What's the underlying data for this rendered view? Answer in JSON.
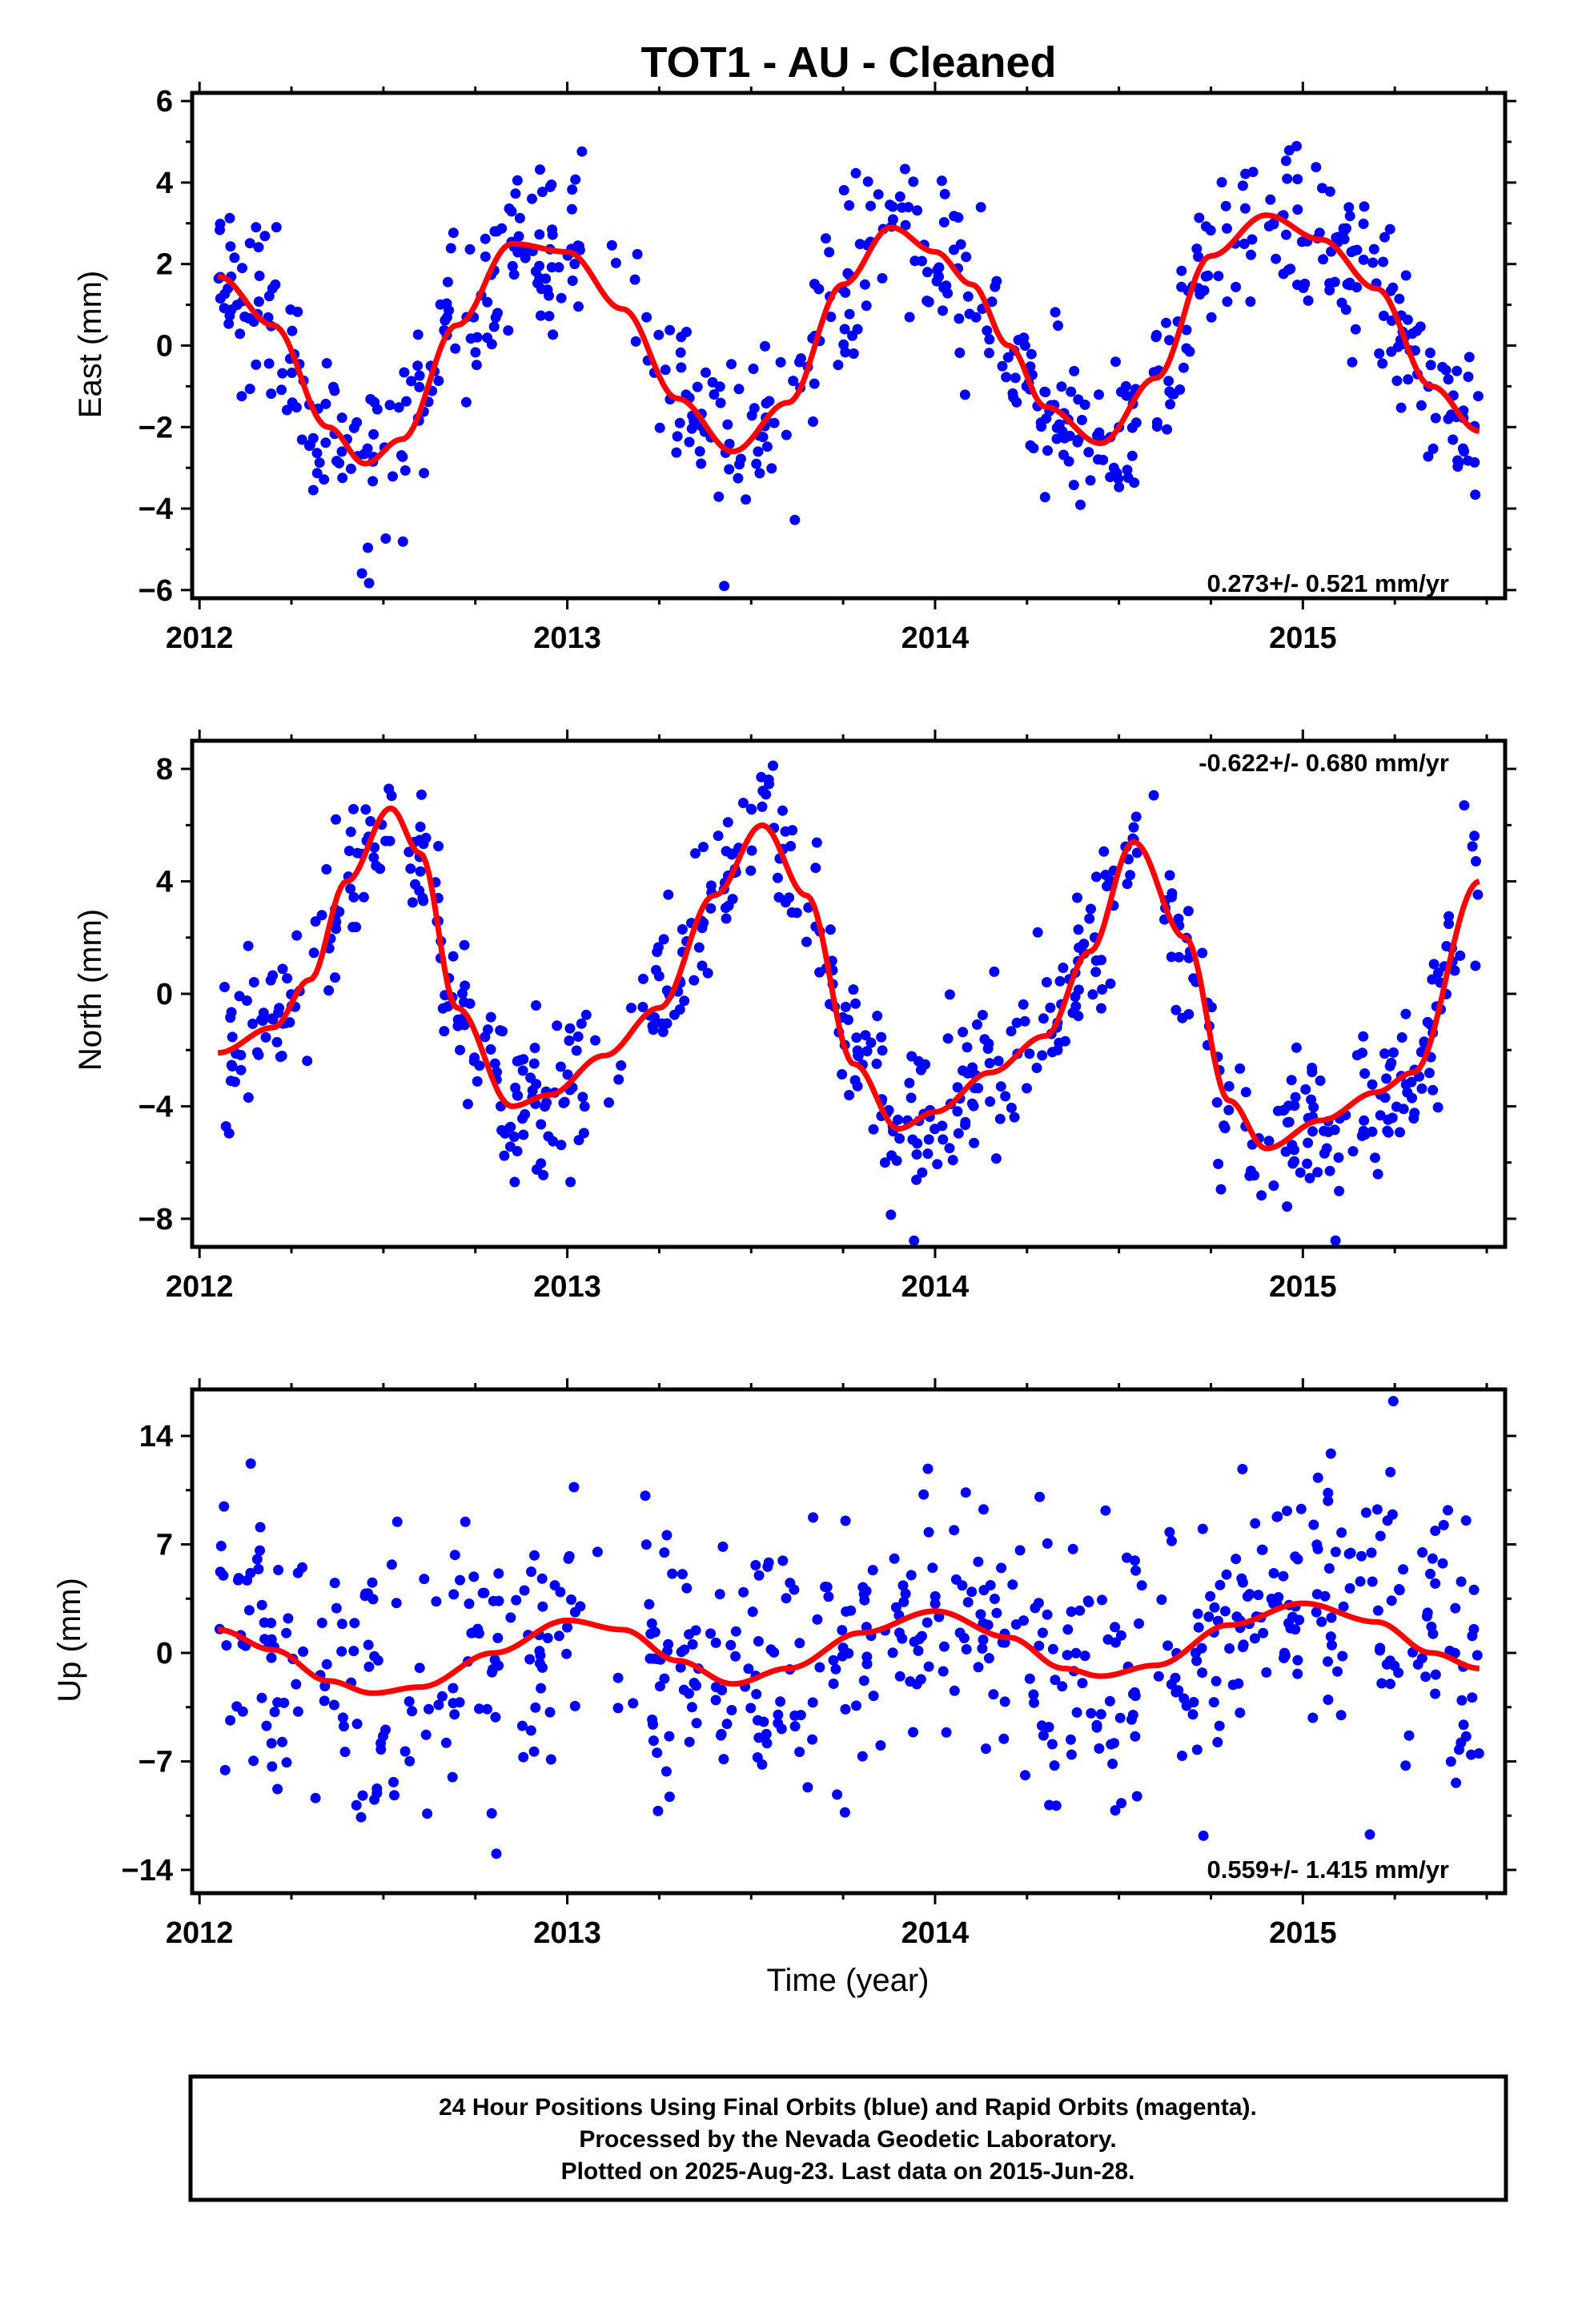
{
  "title": "TOT1  - AU - Cleaned",
  "xlabel": "Time (year)",
  "colors": {
    "points": "#0000ff",
    "fit": "#ff0000",
    "frame": "#000000"
  },
  "footer": {
    "line1": "24 Hour Positions Using Final Orbits (blue) and Rapid Orbits (magenta).",
    "line2": "Processed by the Nevada Geodetic Laboratory.",
    "line3": "Plotted on 2025-Aug-23. Last data on 2015-Jun-28."
  },
  "chart_data": [
    {
      "type": "scatter",
      "ylabel": "East (mm)",
      "rate_label": "0.273+/- 0.521 mm/yr",
      "xlim": [
        2011.98,
        2015.55
      ],
      "ylim": [
        -6.2,
        6.2
      ],
      "xticks": [
        "2012",
        "2013",
        "2014",
        "2015"
      ],
      "yticks": [
        -6,
        -4,
        -2,
        0,
        2,
        4,
        6
      ],
      "fit": {
        "x": [
          2012.05,
          2012.2,
          2012.35,
          2012.45,
          2012.55,
          2012.7,
          2012.85,
          2013.0,
          2013.15,
          2013.3,
          2013.45,
          2013.6,
          2013.75,
          2013.88,
          2014.0,
          2014.1,
          2014.2,
          2014.3,
          2014.45,
          2014.6,
          2014.75,
          2014.9,
          2015.05,
          2015.2,
          2015.35,
          2015.48
        ],
        "y": [
          1.7,
          0.5,
          -2.0,
          -2.9,
          -2.3,
          0.5,
          2.5,
          2.3,
          0.9,
          -1.3,
          -2.6,
          -1.4,
          1.5,
          2.9,
          2.3,
          1.5,
          0.0,
          -1.5,
          -2.4,
          -0.8,
          2.2,
          3.2,
          2.6,
          1.4,
          -1.0,
          -2.1
        ]
      },
      "seasonal": {
        "period": 1.0,
        "fitTop": 2013.88,
        "fitBottom": 2012.45,
        "amplitude": 2.7,
        "meanOffset": 0.25,
        "noiseScale": 1.0,
        "count": 650,
        "gaps": [
          [
            2013.05,
            2013.2
          ],
          [
            2014.55,
            2014.62
          ]
        ]
      }
    },
    {
      "type": "scatter",
      "ylabel": "North (mm)",
      "rate_label": "-0.622+/- 0.680 mm/yr",
      "xlim": [
        2011.98,
        2015.55
      ],
      "ylim": [
        -9.0,
        9.0
      ],
      "xticks": [
        "2012",
        "2013",
        "2014",
        "2015"
      ],
      "yticks": [
        -8,
        -4,
        0,
        4,
        8
      ],
      "fit": {
        "x": [
          2012.05,
          2012.2,
          2012.3,
          2012.4,
          2012.52,
          2012.6,
          2012.7,
          2012.85,
          2012.95,
          2013.1,
          2013.25,
          2013.4,
          2013.53,
          2013.65,
          2013.78,
          2013.9,
          2014.0,
          2014.15,
          2014.3,
          2014.42,
          2014.54,
          2014.68,
          2014.8,
          2014.9,
          2015.05,
          2015.2,
          2015.3,
          2015.48
        ],
        "y": [
          -2.1,
          -1.2,
          0.5,
          4.0,
          6.6,
          5.0,
          -0.5,
          -4.0,
          -3.6,
          -2.2,
          -0.5,
          3.5,
          6.0,
          3.5,
          -2.5,
          -4.8,
          -4.2,
          -2.8,
          -1.5,
          1.5,
          5.4,
          2.0,
          -3.8,
          -5.5,
          -4.5,
          -3.5,
          -2.8,
          4.0
        ]
      },
      "seasonal": {
        "period": 1.0,
        "fitTop": 2012.52,
        "fitBottom": 2013.9,
        "amplitude": 5.0,
        "meanOffset": 0.0,
        "noiseScale": 1.4,
        "count": 650,
        "gaps": [
          [
            2013.05,
            2013.2
          ],
          [
            2014.55,
            2014.62
          ]
        ]
      }
    },
    {
      "type": "scatter",
      "ylabel": "Up (mm)",
      "rate_label": "0.559+/- 1.415 mm/yr",
      "xlim": [
        2011.98,
        2015.55
      ],
      "ylim": [
        -15.5,
        17.0
      ],
      "xticks": [
        "2012",
        "2013",
        "2014",
        "2015"
      ],
      "yticks": [
        -14,
        -7,
        0,
        7,
        14
      ],
      "fit": {
        "x": [
          2012.05,
          2012.2,
          2012.35,
          2012.47,
          2012.6,
          2012.8,
          2013.0,
          2013.15,
          2013.3,
          2013.45,
          2013.6,
          2013.8,
          2014.0,
          2014.2,
          2014.35,
          2014.45,
          2014.6,
          2014.8,
          2015.0,
          2015.2,
          2015.35,
          2015.48
        ],
        "y": [
          1.5,
          0.2,
          -1.8,
          -2.6,
          -2.2,
          0.0,
          2.1,
          1.5,
          -0.5,
          -2.0,
          -1.0,
          1.3,
          2.7,
          1.0,
          -1.0,
          -1.5,
          -0.8,
          1.8,
          3.2,
          2.0,
          0.0,
          -1.0
        ]
      },
      "seasonal": {
        "period": 1.0,
        "fitTop": 2013.02,
        "fitBottom": 2012.47,
        "amplitude": 2.2,
        "meanOffset": 0.0,
        "noiseScale": 4.5,
        "count": 650,
        "gaps": [
          [
            2013.05,
            2013.2
          ],
          [
            2014.55,
            2014.62
          ]
        ]
      }
    }
  ]
}
